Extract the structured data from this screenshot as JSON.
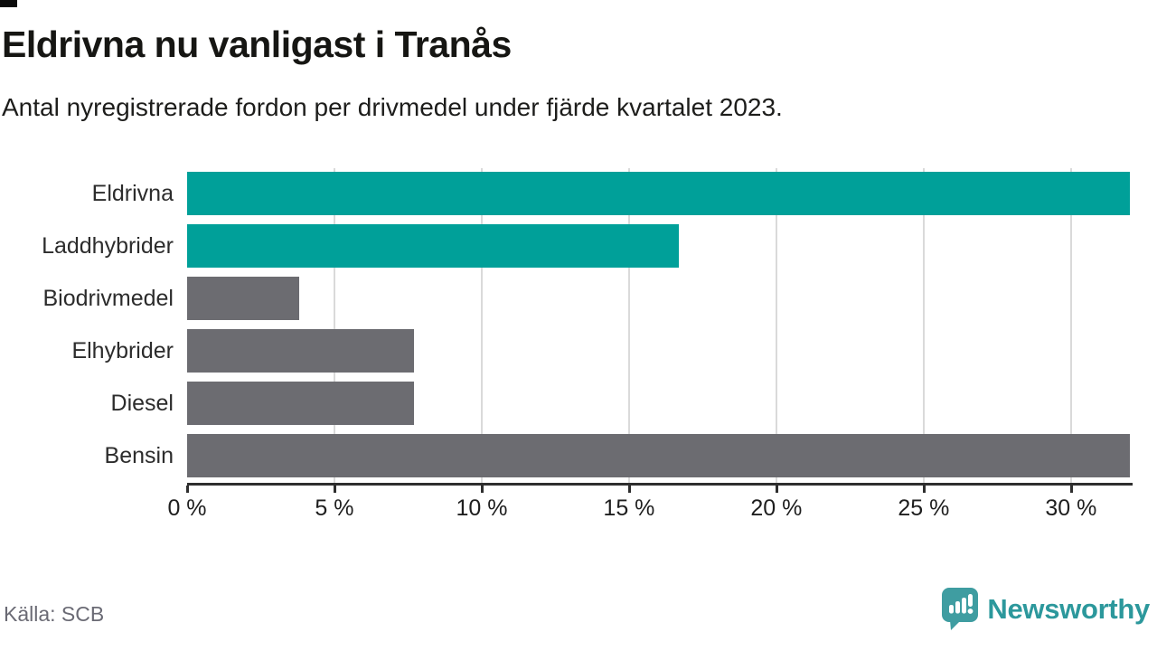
{
  "header": {
    "title": "Eldrivna nu vanligast i Tranås",
    "subtitle": "Antal nyregistrerade fordon per drivmedel under fjärde kvartalet 2023."
  },
  "chart_data": {
    "type": "bar",
    "orientation": "horizontal",
    "title": "Eldrivna nu vanligast i Tranås",
    "subtitle": "Antal nyregistrerade fordon per drivmedel under fjärde kvartalet 2023.",
    "categories": [
      "Eldrivna",
      "Laddhybrider",
      "Biodrivmedel",
      "Elhybrider",
      "Diesel",
      "Bensin"
    ],
    "values": [
      32,
      16.7,
      3.8,
      7.7,
      7.7,
      32
    ],
    "unit": "%",
    "xlim": [
      0,
      32
    ],
    "x_ticks": [
      0,
      5,
      10,
      15,
      20,
      25,
      30
    ],
    "x_tick_labels": [
      "0 %",
      "5 %",
      "10 %",
      "15 %",
      "20 %",
      "25 %",
      "30 %"
    ],
    "grid": "vertical-only",
    "legend": "none",
    "bar_colors": [
      "#00a099",
      "#00a099",
      "#6c6c71",
      "#6c6c71",
      "#6c6c71",
      "#6c6c71"
    ],
    "highlight_color": "#00a099",
    "default_color": "#6c6c71",
    "gridline_color": "#dadada",
    "axis_color": "#2e2e2e"
  },
  "footer": {
    "source": "Källa: SCB",
    "brand": "Newsworthy",
    "brand_color": "#2c989c",
    "logo_icon": "bar-chart-speech-bubble-icon"
  }
}
